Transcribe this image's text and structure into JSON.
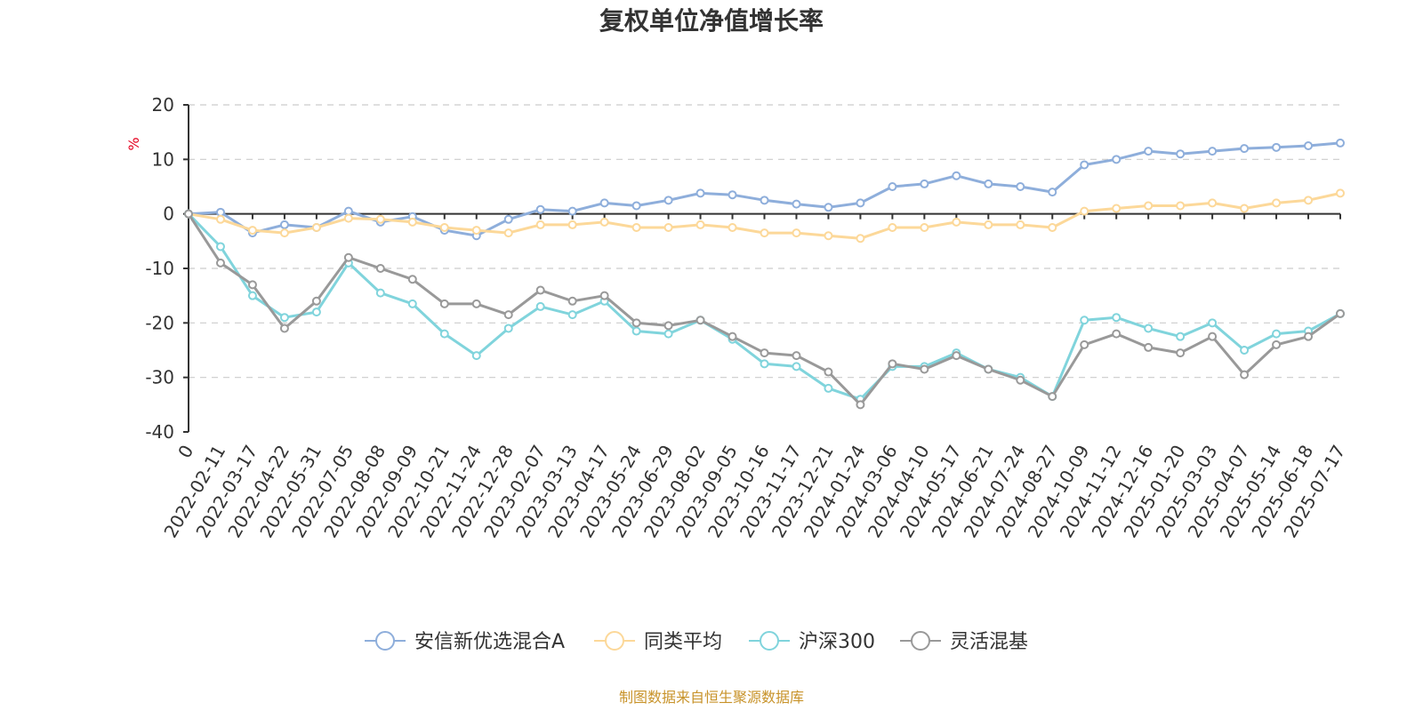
{
  "chart_data": {
    "type": "line",
    "title": "复权单位净值增长率",
    "ylabel": "%",
    "xlabel": "",
    "ylim": [
      -40,
      20
    ],
    "yticks": [
      20,
      10,
      0,
      -10,
      -20,
      -30,
      -40
    ],
    "grid": true,
    "legend_position": "bottom",
    "categories": [
      "0",
      "2022-02-11",
      "2022-03-17",
      "2022-04-22",
      "2022-05-31",
      "2022-07-05",
      "2022-08-08",
      "2022-09-09",
      "2022-10-21",
      "2022-11-24",
      "2022-12-28",
      "2023-02-07",
      "2023-03-13",
      "2023-04-17",
      "2023-05-24",
      "2023-06-29",
      "2023-08-02",
      "2023-09-05",
      "2023-10-16",
      "2023-11-17",
      "2023-12-21",
      "2024-01-24",
      "2024-03-06",
      "2024-04-10",
      "2024-05-17",
      "2024-06-21",
      "2024-07-24",
      "2024-08-27",
      "2024-10-09",
      "2024-11-12",
      "2024-12-16",
      "2025-01-20",
      "2025-03-03",
      "2025-04-07",
      "2025-05-14",
      "2025-06-18",
      "2025-07-17"
    ],
    "series": [
      {
        "name": "安信新优选混合A",
        "color": "#8eaedb",
        "values": [
          0,
          0.3,
          -3.5,
          -2.0,
          -2.5,
          0.5,
          -1.5,
          -0.5,
          -3.0,
          -4.0,
          -1.0,
          0.8,
          0.5,
          2.0,
          1.5,
          2.5,
          3.8,
          3.5,
          2.5,
          1.8,
          1.2,
          2.0,
          5.0,
          5.5,
          7.0,
          5.5,
          5.0,
          4.0,
          9.0,
          10.0,
          11.5,
          11.0,
          11.5,
          12.0,
          12.2,
          12.5,
          13.0
        ]
      },
      {
        "name": "同类平均",
        "color": "#fcd899",
        "values": [
          0,
          -1.0,
          -3.0,
          -3.5,
          -2.5,
          -0.8,
          -1.0,
          -1.5,
          -2.5,
          -3.0,
          -3.5,
          -2.0,
          -2.0,
          -1.5,
          -2.5,
          -2.5,
          -2.0,
          -2.5,
          -3.5,
          -3.5,
          -4.0,
          -4.5,
          -2.5,
          -2.5,
          -1.5,
          -2.0,
          -2.0,
          -2.5,
          0.5,
          1.0,
          1.5,
          1.5,
          2.0,
          1.0,
          2.0,
          2.5,
          3.8
        ]
      },
      {
        "name": "沪深300",
        "color": "#80d4dc",
        "values": [
          0,
          -6.0,
          -15.0,
          -19.0,
          -18.0,
          -9.0,
          -14.5,
          -16.5,
          -22.0,
          -26.0,
          -21.0,
          -17.0,
          -18.5,
          -16.0,
          -21.5,
          -22.0,
          -19.5,
          -23.0,
          -27.5,
          -28.0,
          -32.0,
          -34.0,
          -28.0,
          -28.0,
          -25.5,
          -28.5,
          -30.0,
          -33.5,
          -19.5,
          -19.0,
          -21.0,
          -22.5,
          -20.0,
          -25.0,
          -22.0,
          -21.5,
          -18.3
        ]
      },
      {
        "name": "灵活混基",
        "color": "#999999",
        "values": [
          0,
          -9.0,
          -13.0,
          -21.0,
          -16.0,
          -8.0,
          -10.0,
          -12.0,
          -16.5,
          -16.5,
          -18.5,
          -14.0,
          -16.0,
          -15.0,
          -20.0,
          -20.5,
          -19.5,
          -22.5,
          -25.5,
          -26.0,
          -29.0,
          -35.0,
          -27.5,
          -28.5,
          -26.0,
          -28.5,
          -30.5,
          -33.5,
          -24.0,
          -22.0,
          -24.5,
          -25.5,
          -22.5,
          -29.5,
          -24.0,
          -22.5,
          -18.3
        ]
      }
    ]
  },
  "footer": {
    "source": "制图数据来自恒生聚源数据库"
  }
}
